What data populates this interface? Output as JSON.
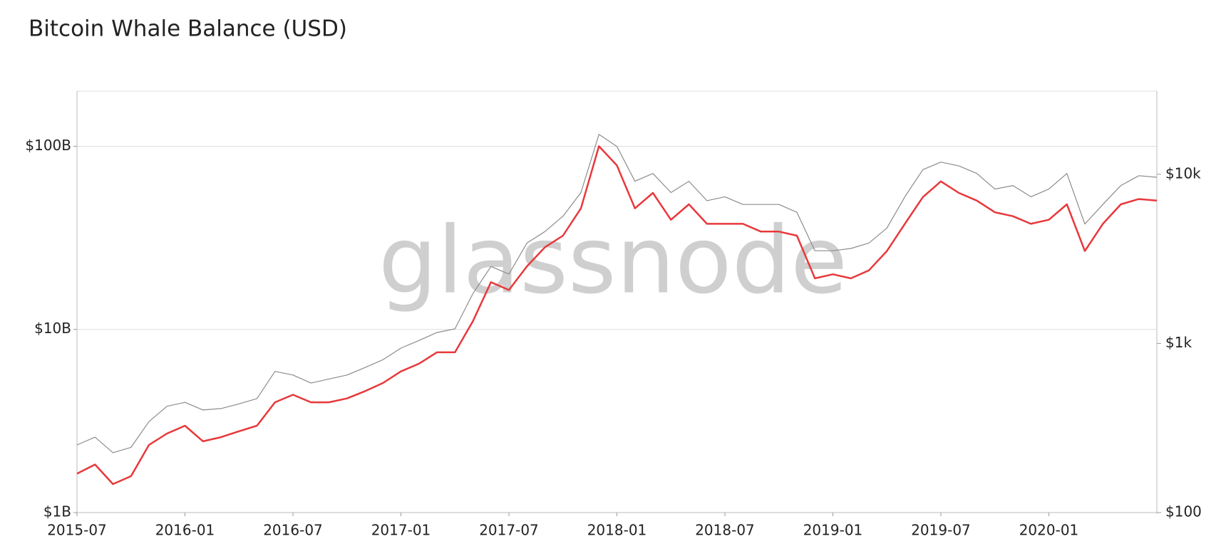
{
  "chart_data": {
    "type": "line",
    "title": "Bitcoin Whale Balance (USD)",
    "watermark": "glassnode",
    "log_scale": true,
    "grid": true,
    "x": [
      "2015-07",
      "2015-08",
      "2015-09",
      "2015-10",
      "2015-11",
      "2015-12",
      "2016-01",
      "2016-02",
      "2016-03",
      "2016-04",
      "2016-05",
      "2016-06",
      "2016-07",
      "2016-08",
      "2016-09",
      "2016-10",
      "2016-11",
      "2016-12",
      "2017-01",
      "2017-02",
      "2017-03",
      "2017-04",
      "2017-05",
      "2017-06",
      "2017-07",
      "2017-08",
      "2017-09",
      "2017-10",
      "2017-11",
      "2017-12",
      "2018-01",
      "2018-02",
      "2018-03",
      "2018-04",
      "2018-05",
      "2018-06",
      "2018-07",
      "2018-08",
      "2018-09",
      "2018-10",
      "2018-11",
      "2018-12",
      "2019-01",
      "2019-02",
      "2019-03",
      "2019-04",
      "2019-05",
      "2019-06",
      "2019-07",
      "2019-08",
      "2019-09",
      "2019-10",
      "2019-11",
      "2019-12",
      "2020-01",
      "2020-02",
      "2020-03",
      "2020-04",
      "2020-05",
      "2020-06",
      "2020-07"
    ],
    "xlim": [
      "2015-07",
      "2020-07"
    ],
    "xticks": [
      "2015-07",
      "2016-01",
      "2016-07",
      "2017-01",
      "2017-07",
      "2018-01",
      "2018-07",
      "2019-01",
      "2019-07",
      "2020-01"
    ],
    "ylim": [
      1000000000,
      200000000000
    ],
    "yticks": [
      {
        "value": 1000000000,
        "label": "$1B"
      },
      {
        "value": 10000000000,
        "label": "$10B"
      },
      {
        "value": 100000000000,
        "label": "$100B"
      }
    ],
    "y2lim": [
      100,
      31000
    ],
    "y2ticks": [
      {
        "value": 100,
        "label": "$100"
      },
      {
        "value": 1000,
        "label": "$1k"
      },
      {
        "value": 10000,
        "label": "$10k"
      }
    ],
    "series": [
      {
        "color": "#e8383b",
        "values": [
          1630000000,
          1830000000,
          1430000000,
          1580000000,
          2340000000,
          2700000000,
          2980000000,
          2450000000,
          2580000000,
          2780000000,
          2980000000,
          4000000000,
          4400000000,
          4000000000,
          4000000000,
          4200000000,
          4600000000,
          5100000000,
          5900000000,
          6500000000,
          7500000000,
          7500000000,
          11100000000,
          18100000000,
          16400000000,
          22100000000,
          28100000000,
          32500000000,
          45800000000,
          100000000000,
          78600000000,
          45800000000,
          55600000000,
          39700000000,
          48200000000,
          37700000000,
          37700000000,
          37700000000,
          34200000000,
          34200000000,
          32500000000,
          19000000000,
          20000000000,
          19000000000,
          21000000000,
          26800000000,
          37700000000,
          52800000000,
          64300000000,
          55600000000,
          50500000000,
          43600000000,
          41500000000,
          37700000000,
          39700000000,
          48200000000,
          26800000000,
          37700000000,
          48200000000,
          51500000000,
          50500000000
        ]
      },
      {
        "color": "#8c8c8c",
        "axis": "y2",
        "values": [
          251,
          279,
          226,
          243,
          345,
          425,
          448,
          404,
          412,
          439,
          472,
          683,
          650,
          583,
          616,
          650,
          720,
          801,
          938,
          1040,
          1160,
          1220,
          1970,
          2850,
          2570,
          3920,
          4580,
          5650,
          7790,
          17200,
          14600,
          9090,
          10100,
          7790,
          9090,
          6980,
          7360,
          6630,
          6630,
          6630,
          5960,
          3530,
          3530,
          3640,
          3920,
          4810,
          7360,
          10650,
          11800,
          11200,
          10100,
          8170,
          8580,
          7360,
          8170,
          10100,
          5080,
          6630,
          8580,
          9800,
          9600
        ]
      }
    ]
  }
}
